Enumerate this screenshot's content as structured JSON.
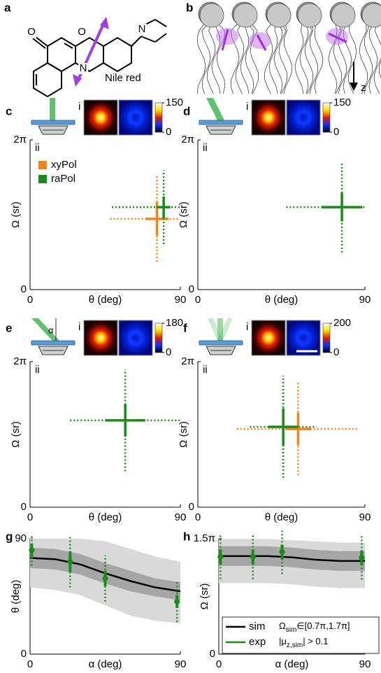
{
  "panel_a": {
    "label": "a",
    "atoms": [
      "O",
      "O",
      "N",
      "N"
    ],
    "name": "Nile red"
  },
  "panel_b": {
    "label": "b",
    "axis": "z"
  },
  "chart_data": [
    {
      "type": "scatter",
      "label": "c",
      "inset_labels": [
        "i",
        "ii"
      ],
      "colorbar_ticks": [
        0,
        150
      ],
      "xlabel": "θ (deg)",
      "ylabel": "Ω (sr)",
      "xlim": [
        0,
        90
      ],
      "ylim": [
        0,
        6.283
      ],
      "xticks": [
        0,
        90
      ],
      "yticks": [
        0,
        {
          "value": 6.283,
          "label": "2π"
        }
      ],
      "legend": "upper left",
      "series": [
        {
          "name": "xyPol",
          "color": "#f0831e",
          "x": [
            76
          ],
          "values": [
            2.97
          ],
          "x_err": [
            7
          ],
          "y_err": [
            0.7
          ],
          "x_spread": [
            28
          ],
          "y_spread": [
            1.8
          ]
        },
        {
          "name": "raPol",
          "color": "#1b8a1b",
          "x": [
            80
          ],
          "values": [
            3.46
          ],
          "x_err": [
            4
          ],
          "y_err": [
            0.45
          ],
          "x_spread": [
            31
          ],
          "y_spread": [
            1.55
          ]
        }
      ]
    },
    {
      "type": "scatter",
      "label": "d",
      "inset_labels": [
        "i",
        "ii"
      ],
      "colorbar_ticks": [
        0,
        150
      ],
      "xlabel": "θ (deg)",
      "ylabel": "Ω (sr)",
      "xlim": [
        0,
        90
      ],
      "ylim": [
        0,
        6.283
      ],
      "xticks": [
        0,
        90
      ],
      "yticks": [
        0,
        {
          "value": 6.283,
          "label": "2π"
        }
      ],
      "series": [
        {
          "color": "#1b8a1b",
          "x": [
            77.6
          ],
          "values": [
            3.46
          ],
          "x_err": [
            11
          ],
          "y_err": [
            0.6
          ],
          "x_spread": [
            30
          ],
          "y_spread": [
            1.9
          ]
        }
      ]
    },
    {
      "type": "scatter",
      "label": "e",
      "icon_label": "α",
      "inset_labels": [
        "i",
        "ii"
      ],
      "colorbar_ticks": [
        0,
        180
      ],
      "xlabel": "θ (deg)",
      "ylabel": "Ω (sr)",
      "xlim": [
        0,
        90
      ],
      "ylim": [
        0,
        6.283
      ],
      "xticks": [
        0,
        90
      ],
      "yticks": [
        0,
        {
          "value": 6.283,
          "label": "2π"
        }
      ],
      "series": [
        {
          "color": "#1b8a1b",
          "x": [
            57
          ],
          "values": [
            3.75
          ],
          "x_err": [
            12
          ],
          "y_err": [
            0.7
          ],
          "x_spread": [
            33
          ],
          "y_spread": [
            2.2
          ]
        }
      ]
    },
    {
      "type": "scatter",
      "label": "f",
      "inset_labels": [
        "i",
        "ii"
      ],
      "colorbar_ticks": [
        0,
        200
      ],
      "xlabel": "θ (deg)",
      "ylabel": "Ω (sr)",
      "xlim": [
        0,
        90
      ],
      "ylim": [
        0,
        6.283
      ],
      "xticks": [
        0,
        90
      ],
      "yticks": [
        0,
        {
          "value": 6.283,
          "label": "2π"
        }
      ],
      "series": [
        {
          "color": "#f0831e",
          "x": [
            54
          ],
          "values": [
            3.38
          ],
          "x_err": [
            7
          ],
          "y_err": [
            0.7
          ],
          "x_spread": [
            33
          ],
          "y_spread": [
            2.0
          ]
        },
        {
          "color": "#1b8a1b",
          "x": [
            46
          ],
          "values": [
            3.47
          ],
          "x_err": [
            8
          ],
          "y_err": [
            0.8
          ],
          "x_spread": [
            18
          ],
          "y_spread": [
            2.2
          ]
        }
      ]
    },
    {
      "type": "line",
      "label": "g",
      "xlabel": "α (deg)",
      "ylabel": "θ (deg)",
      "xlim": [
        0,
        90
      ],
      "ylim": [
        0,
        90
      ],
      "xticks": [
        0,
        90
      ],
      "yticks": [
        0,
        90
      ],
      "x": [
        0,
        15,
        30,
        45,
        60,
        75,
        90
      ],
      "band_outer": {
        "lower": [
          52,
          50,
          46,
          38,
          30,
          26,
          24
        ],
        "upper": [
          90,
          90,
          90,
          88,
          82,
          76,
          72
        ]
      },
      "band_inner": {
        "lower": [
          67,
          66,
          62,
          55,
          49,
          45,
          42
        ],
        "upper": [
          83,
          82,
          78,
          71,
          65,
          59,
          56
        ]
      },
      "series": [
        {
          "color": "#000000",
          "values": [
            75,
            74,
            70,
            63,
            57,
            52,
            49
          ]
        },
        {
          "color": "#1b8a1b",
          "x": [
            1,
            24,
            45,
            88
          ],
          "values": [
            81,
            72,
            59,
            41
          ],
          "err": [
            5,
            8,
            6,
            5
          ],
          "spread": [
            12,
            20,
            18,
            16
          ]
        }
      ]
    },
    {
      "type": "line",
      "label": "h",
      "xlabel": "α (deg)",
      "ylabel": "Ω (sr)",
      "xlim": [
        0,
        90
      ],
      "ylim": [
        0,
        4.712
      ],
      "xticks": [
        0,
        90
      ],
      "yticks": [
        0,
        {
          "value": 4.712,
          "label": "1.5π"
        }
      ],
      "x": [
        0,
        15,
        30,
        45,
        60,
        75,
        90
      ],
      "band_outer": {
        "lower": [
          2.9,
          2.9,
          2.9,
          2.85,
          2.75,
          2.7,
          2.7
        ],
        "upper": [
          4.7,
          4.7,
          4.7,
          4.65,
          4.6,
          4.55,
          4.55
        ]
      },
      "band_inner": {
        "lower": [
          3.6,
          3.6,
          3.6,
          3.55,
          3.45,
          3.4,
          3.4
        ],
        "upper": [
          4.4,
          4.4,
          4.4,
          4.35,
          4.25,
          4.2,
          4.2
        ]
      },
      "annotation": [
        [
          "Ω",
          "sim",
          "∈[0.7π,1.7π]"
        ],
        [
          "|μ",
          "z,sim",
          "| > 0.1"
        ]
      ],
      "series": [
        {
          "name": "sim",
          "color": "#000000",
          "values": [
            4.0,
            4.0,
            4.0,
            3.95,
            3.85,
            3.8,
            3.8
          ]
        },
        {
          "name": "exp",
          "color": "#1b8a1b",
          "x": [
            1,
            21,
            39,
            88
          ],
          "values": [
            3.97,
            3.97,
            4.17,
            3.94
          ],
          "err": [
            0.3,
            0.3,
            0.3,
            0.3
          ],
          "spread": [
            0.9,
            0.9,
            0.9,
            0.9
          ]
        }
      ]
    }
  ]
}
